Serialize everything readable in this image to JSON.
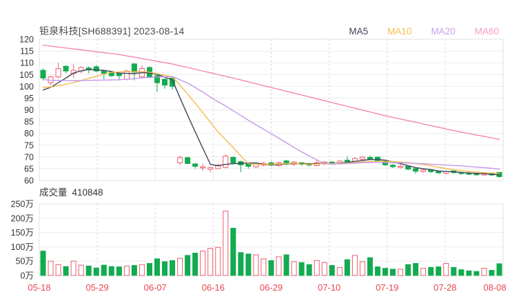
{
  "header": {
    "title": "钜泉科技[SH688391] 2023-08-14",
    "legend": [
      {
        "label": "MA5",
        "color": "#3a3f52"
      },
      {
        "label": "MA10",
        "color": "#f5c04e"
      },
      {
        "label": "MA20",
        "color": "#c9a0ec"
      },
      {
        "label": "MA60",
        "color": "#f79cc5"
      }
    ]
  },
  "volume_header": {
    "label": "成交量",
    "value": "410848"
  },
  "colors": {
    "up": "#ea5c6b",
    "down": "#12ab50",
    "axis_label": "#333333",
    "date_label": "#e8464f",
    "grid": "#ebebeb",
    "grid_dash": "#d6d6d6",
    "pane_border": "#e0e0e0",
    "title": "#4a4a4a"
  },
  "chart_data": {
    "type": "candlestick+volume",
    "title": "钜泉科技[SH688391] 2023-08-14",
    "legend_position": "top-right",
    "grid": true,
    "price_axis": {
      "min": 60,
      "max": 120,
      "step": 5,
      "tick_labels": [
        "120",
        "115",
        "110",
        "105",
        "100",
        "95",
        "90",
        "85",
        "80",
        "75",
        "70",
        "65",
        "60"
      ]
    },
    "volume_axis": {
      "min": 0,
      "max": 250,
      "step": 50,
      "unit": "万",
      "tick_labels": [
        "250万",
        "200万",
        "150万",
        "100万",
        "50万",
        "0万"
      ]
    },
    "x_labels": [
      "05-18",
      "05-29",
      "06-07",
      "06-16",
      "06-29",
      "07-10",
      "07-19",
      "07-28",
      "08-08"
    ],
    "dates": [
      "05-18",
      "05-19",
      "05-22",
      "05-23",
      "05-24",
      "05-25",
      "05-26",
      "05-29",
      "05-30",
      "05-31",
      "06-01",
      "06-02",
      "06-05",
      "06-06",
      "06-07",
      "06-08",
      "06-09",
      "06-12",
      "06-13",
      "06-14",
      "06-15",
      "06-16",
      "06-19",
      "06-20",
      "06-21",
      "06-26",
      "06-27",
      "06-28",
      "06-29",
      "06-30",
      "07-03",
      "07-04",
      "07-05",
      "07-06",
      "07-07",
      "07-10",
      "07-11",
      "07-12",
      "07-13",
      "07-14",
      "07-17",
      "07-18",
      "07-19",
      "07-20",
      "07-21",
      "07-24",
      "07-25",
      "07-26",
      "07-27",
      "07-28",
      "07-31",
      "08-01",
      "08-02",
      "08-03",
      "08-04",
      "08-07",
      "08-08",
      "08-09",
      "08-10",
      "08-11",
      "08-14"
    ],
    "open": [
      106.8,
      101.5,
      104.0,
      108.5,
      105.5,
      106.5,
      107.8,
      108.3,
      106.5,
      106.0,
      105.5,
      103.0,
      109.5,
      104.0,
      108.0,
      104.5,
      103.0,
      103.5,
      67.5,
      69.7,
      67.0,
      65.3,
      64.8,
      65.0,
      65.5,
      69.8,
      68.0,
      67.0,
      65.8,
      66.5,
      67.5,
      66.3,
      68.3,
      66.8,
      67.5,
      67.2,
      66.3,
      67.0,
      67.8,
      67.2,
      68.6,
      68.2,
      69.0,
      69.8,
      69.9,
      68.0,
      66.5,
      65.5,
      66.0,
      65.0,
      63.8,
      64.5,
      63.8,
      63.0,
      64.0,
      63.4,
      63.0,
      62.8,
      62.3,
      62.8,
      63.4
    ],
    "close": [
      103.5,
      104.0,
      107.5,
      106.5,
      106.8,
      108.0,
      107.0,
      106.5,
      105.5,
      104.5,
      104.5,
      106.5,
      106.0,
      107.5,
      104.0,
      101.5,
      100.5,
      100.0,
      69.7,
      67.2,
      66.0,
      65.8,
      65.5,
      66.5,
      70.3,
      67.5,
      66.6,
      66.0,
      66.8,
      67.3,
      66.5,
      67.5,
      67.0,
      67.8,
      66.8,
      66.5,
      67.5,
      67.8,
      67.0,
      68.2,
      68.0,
      69.3,
      69.9,
      69.0,
      68.2,
      66.6,
      65.8,
      66.0,
      64.8,
      63.9,
      64.5,
      63.7,
      63.2,
      63.8,
      63.3,
      62.9,
      62.6,
      62.4,
      62.9,
      62.3,
      61.6
    ],
    "high": [
      107.5,
      104.5,
      110.0,
      109.0,
      109.5,
      108.5,
      108.5,
      109.0,
      107.0,
      106.5,
      106.0,
      107.0,
      110.0,
      109.0,
      108.5,
      105.0,
      103.5,
      104.0,
      70.5,
      70.0,
      67.5,
      67.0,
      65.8,
      67.0,
      71.0,
      70.2,
      68.4,
      67.5,
      67.2,
      67.8,
      68.0,
      68.0,
      68.8,
      68.2,
      67.8,
      67.5,
      68.5,
      68.3,
      68.2,
      68.8,
      70.3,
      69.8,
      70.4,
      70.6,
      70.2,
      68.2,
      67.0,
      66.8,
      66.3,
      65.3,
      65.0,
      64.8,
      64.2,
      64.2,
      64.3,
      63.7,
      64.0,
      63.2,
      63.3,
      63.1,
      63.6
    ],
    "low": [
      102.5,
      100.5,
      103.5,
      105.5,
      103.5,
      105.5,
      105.5,
      106.0,
      103.0,
      104.0,
      102.5,
      102.5,
      102.5,
      103.5,
      103.5,
      97.5,
      99.0,
      98.5,
      66.5,
      66.8,
      65.0,
      64.0,
      63.5,
      64.8,
      65.2,
      66.8,
      63.5,
      65.0,
      65.2,
      66.0,
      66.0,
      66.0,
      66.5,
      66.3,
      66.2,
      66.0,
      66.0,
      66.5,
      66.6,
      66.9,
      67.7,
      67.9,
      68.6,
      68.7,
      67.9,
      66.2,
      65.3,
      65.0,
      64.3,
      62.8,
      63.3,
      63.2,
      62.8,
      62.6,
      62.9,
      62.4,
      62.3,
      62.0,
      62.0,
      61.9,
      61.2
    ],
    "volume_wan": [
      85,
      50,
      38,
      31,
      50,
      36,
      33,
      26,
      36,
      31,
      30,
      33,
      35,
      38,
      42,
      58,
      48,
      52,
      60,
      70,
      78,
      85,
      95,
      98,
      225,
      165,
      80,
      75,
      72,
      58,
      52,
      65,
      72,
      48,
      45,
      38,
      52,
      45,
      35,
      28,
      55,
      70,
      48,
      62,
      30,
      25,
      22,
      22,
      38,
      42,
      25,
      28,
      30,
      42,
      28,
      20,
      16,
      14,
      25,
      18,
      41
    ],
    "ma_series": [
      {
        "name": "MA5",
        "color": "#3e4358",
        "values": [
          98.41,
          99.56,
          101.55,
          103.5,
          105.66,
          106.56,
          107.16,
          106.96,
          106.76,
          106.3,
          105.6,
          105.5,
          105.4,
          105.8,
          105.7,
          105.1,
          103.9,
          102.7,
          95.14,
          87.78,
          80.68,
          73.74,
          66.84,
          66.2,
          66.82,
          67.12,
          67.28,
          67.38,
          67.44,
          66.84,
          66.64,
          66.82,
          67.02,
          67.22,
          67.12,
          67.12,
          67.12,
          67.28,
          67.12,
          67.4,
          67.7,
          68.06,
          68.48,
          68.88,
          68.88,
          68.6,
          67.9,
          67.12,
          66.28,
          65.42,
          65.0,
          64.58,
          64.02,
          63.82,
          63.7,
          63.38,
          63.16,
          63.0,
          62.82,
          62.62,
          62.36
        ]
      },
      {
        "name": "MA10",
        "color": "#f3bb4d",
        "values": [
          99.48,
          99.67,
          100.29,
          100.89,
          101.59,
          102.49,
          103.36,
          104.26,
          105.13,
          105.98,
          106.08,
          106.33,
          106.18,
          106.28,
          106.0,
          105.35,
          104.7,
          104.05,
          100.47,
          96.74,
          92.89,
          88.82,
          84.77,
          80.67,
          77.3,
          73.9,
          70.51,
          67.11,
          66.82,
          66.83,
          66.88,
          67.05,
          67.2,
          67.33,
          66.98,
          66.88,
          66.97,
          67.15,
          67.17,
          67.26,
          67.41,
          67.59,
          67.88,
          68.0,
          68.14,
          68.15,
          67.98,
          67.8,
          67.58,
          67.15,
          66.8,
          66.24,
          65.57,
          65.05,
          64.56,
          64.19,
          63.87,
          63.51,
          63.32,
          63.16,
          62.87
        ]
      },
      {
        "name": "MA20",
        "color": "#c697ea",
        "values": [
          102.86,
          102.58,
          102.51,
          102.43,
          102.4,
          102.47,
          102.52,
          102.59,
          102.65,
          102.7,
          102.78,
          103.0,
          103.23,
          103.58,
          103.79,
          103.92,
          104.03,
          104.15,
          102.8,
          101.36,
          99.48,
          97.57,
          95.47,
          93.47,
          91.65,
          89.62,
          87.6,
          85.58,
          83.64,
          81.78,
          79.88,
          77.93,
          75.98,
          74.0,
          72.14,
          70.39,
          68.74,
          67.13,
          66.99,
          67.04,
          67.14,
          67.32,
          67.54,
          67.66,
          67.56,
          67.51,
          67.47,
          67.47,
          67.37,
          67.2,
          67.1,
          66.91,
          66.72,
          66.52,
          66.35,
          66.17,
          65.92,
          65.65,
          65.45,
          65.15,
          64.83
        ]
      },
      {
        "name": "MA60",
        "color": "#f584b5",
        "values": [
          117.5,
          117.1,
          116.7,
          116.3,
          115.9,
          115.5,
          115.1,
          114.7,
          114.3,
          113.9,
          113.5,
          112.93,
          112.36,
          111.79,
          111.21,
          110.64,
          110.07,
          109.5,
          108.75,
          108.0,
          107.25,
          106.5,
          105.75,
          105.0,
          104.25,
          103.5,
          102.7,
          101.9,
          101.1,
          100.3,
          99.5,
          98.7,
          97.9,
          97.1,
          96.3,
          95.5,
          94.7,
          93.9,
          93.1,
          92.3,
          91.5,
          90.7,
          89.9,
          89.1,
          88.3,
          87.5,
          86.8,
          86.1,
          85.4,
          84.7,
          84.0,
          83.3,
          82.6,
          81.9,
          81.2,
          80.5,
          79.9,
          79.3,
          78.7,
          78.1,
          77.5
        ]
      }
    ]
  }
}
